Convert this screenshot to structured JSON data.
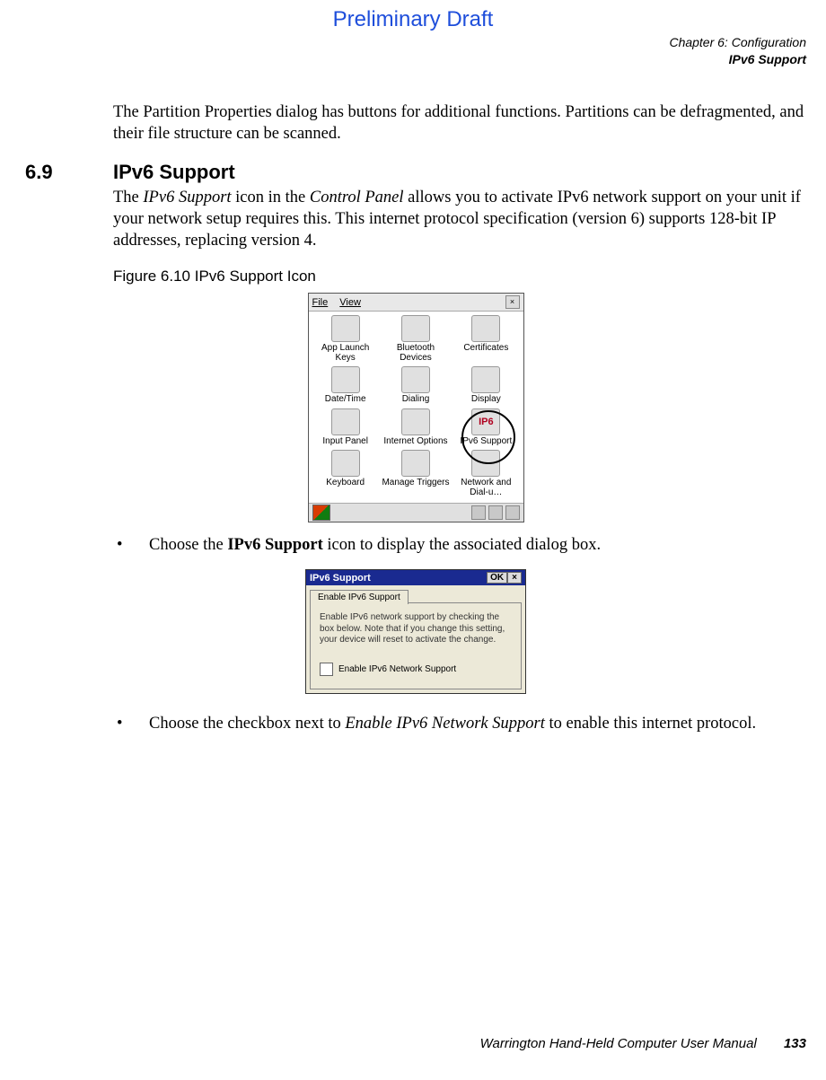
{
  "draft_header": "Preliminary Draft",
  "chapter_header": {
    "line1": "Chapter 6: Configuration",
    "line2": "IPv6 Support"
  },
  "intro_para": "The Partition Properties dialog has buttons for additional functions. Partitions can be defragmented, and their file structure can be scanned.",
  "section": {
    "number": "6.9",
    "title": "IPv6 Support"
  },
  "body_para_parts": {
    "t1": "The ",
    "i1": "IPv6 Support",
    "t2": " icon in the ",
    "i2": "Control Panel",
    "t3": " allows you to activate IPv6 network support on your unit if your network setup requires this. This internet protocol specification (version 6) supports 128-bit IP addresses, replacing version 4."
  },
  "figure_caption": "Figure 6.10 IPv6 Support Icon",
  "control_panel": {
    "menu_file": "File",
    "menu_view": "View",
    "items": {
      "app_launch": "App Launch Keys",
      "bluetooth": "Bluetooth Devices",
      "certificates": "Certificates",
      "datetime": "Date/Time",
      "dialing": "Dialing",
      "display": "Display",
      "input_panel": "Input Panel",
      "internet_options": "Internet Options",
      "ipv6_support": "IPv6 Support",
      "keyboard": "Keyboard",
      "manage_triggers": "Manage Triggers",
      "network": "Network and Dial-u…"
    }
  },
  "bullet1_parts": {
    "t1": "Choose the ",
    "b1": "IPv6 Support",
    "t2": " icon to display the associated dialog box."
  },
  "dialog": {
    "title": "IPv6 Support",
    "ok": "OK",
    "close": "×",
    "tab": "Enable IPv6 Support",
    "instructions": "Enable IPv6 network support by checking the box below.  Note that if you change this setting, your device will reset to activate the change.",
    "checkbox_label": "Enable IPv6 Network Support"
  },
  "bullet2_parts": {
    "t1": "Choose the checkbox next to ",
    "i1": "Enable IPv6 Network Support",
    "t2": " to enable this internet protocol."
  },
  "footer": {
    "text": "Warrington Hand-Held Computer User Manual",
    "page": "133"
  }
}
